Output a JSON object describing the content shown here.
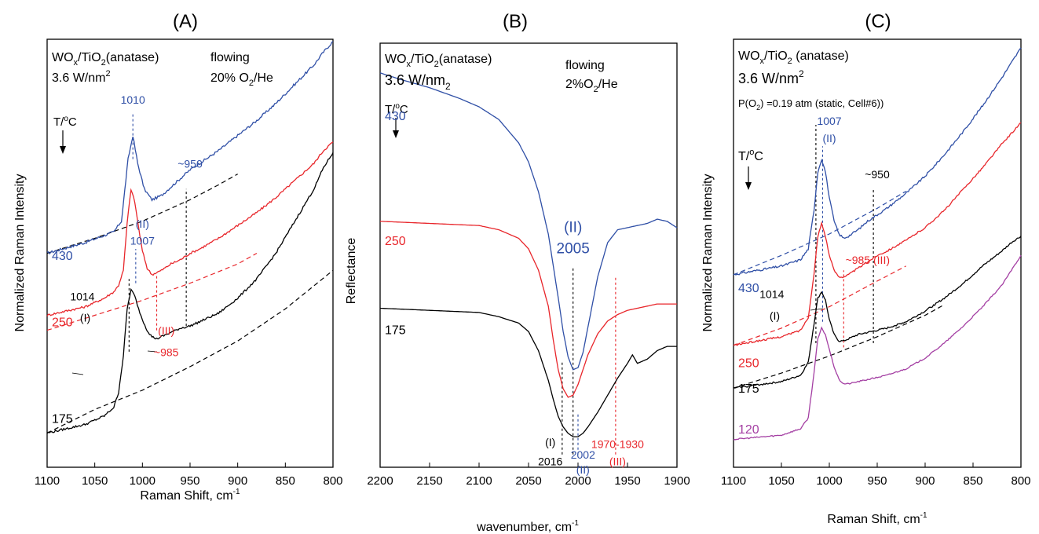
{
  "colors": {
    "blue": "#2f4fa6",
    "red": "#e8262b",
    "black": "#000000",
    "magenta": "#a43fa3"
  },
  "chart_data": [
    {
      "panel_label": "(A)",
      "type": "line",
      "xlabel": "Raman Shift, cm",
      "xlabel_sup": "-1",
      "ylabel": "Normalized Raman Intensity",
      "xlim": [
        1100,
        800
      ],
      "x_ticks": [
        "1100",
        "1050",
        "1000",
        "950",
        "900",
        "850",
        "800"
      ],
      "x_tick_values": [
        1100,
        1050,
        1000,
        950,
        900,
        850,
        800
      ],
      "ylim": [
        0,
        10
      ],
      "notes": {
        "sample": "WO",
        "sample_sub": "x",
        "sample_mid": "/TiO",
        "sample_sub2": "2",
        "sample_tail": "(anatase)",
        "density": "3.6 W/nm",
        "density_sup": "2",
        "cond1": "flowing",
        "cond2": "20% O",
        "cond2_sub": "2",
        "cond2_tail": "/He",
        "temp": "T/",
        "temp_sup": "o",
        "temp_tail": "C"
      },
      "annotations": [
        {
          "text": "1010",
          "x": 1010,
          "y": 8.5,
          "color": "blue"
        },
        {
          "text": "~950",
          "x": 950,
          "y": 7.0,
          "color": "blue"
        },
        {
          "text": "(II)",
          "x": 1000,
          "y": 5.6,
          "color": "blue"
        },
        {
          "text": "1007",
          "x": 1000,
          "y": 5.2,
          "color": "blue"
        },
        {
          "text": "1014",
          "x": 1063,
          "y": 3.9,
          "color": "black"
        },
        {
          "text": "(I)",
          "x": 1060,
          "y": 3.4,
          "color": "black"
        },
        {
          "text": "(III)",
          "x": 975,
          "y": 3.1,
          "color": "red"
        },
        {
          "text": "~985",
          "x": 975,
          "y": 2.6,
          "color": "red"
        }
      ],
      "vlines": [
        {
          "x": 1010,
          "y0": 7.2,
          "y1": 8.3,
          "color": "blue"
        },
        {
          "x": 954,
          "y0": 3.3,
          "y1": 6.5,
          "color": "black"
        },
        {
          "x": 1014,
          "y0": 2.7,
          "y1": 4.4,
          "color": "black"
        },
        {
          "x": 1007,
          "y0": 4.3,
          "y1": 5.1,
          "color": "blue"
        },
        {
          "x": 985,
          "y0": 3.2,
          "y1": 4.5,
          "color": "red"
        }
      ],
      "series": [
        {
          "name": "430",
          "color": "blue",
          "label_y": 4.95,
          "noise": 0.06,
          "x": [
            1100,
            1060,
            1030,
            1022,
            1015,
            1010,
            1005,
            998,
            990,
            980,
            970,
            960,
            950,
            940,
            920,
            900,
            880,
            860,
            840,
            820,
            810,
            800
          ],
          "y": [
            5.0,
            5.25,
            5.5,
            5.75,
            7.2,
            7.75,
            7.1,
            6.5,
            6.25,
            6.35,
            6.55,
            6.75,
            6.95,
            7.1,
            7.4,
            7.75,
            8.1,
            8.5,
            8.95,
            9.4,
            9.7,
            9.95
          ]
        },
        {
          "name": "250",
          "color": "red",
          "label_y": 3.4,
          "noise": 0.05,
          "x": [
            1100,
            1060,
            1040,
            1030,
            1025,
            1020,
            1016,
            1012,
            1008,
            1004,
            1000,
            995,
            990,
            980,
            970,
            960,
            950,
            940,
            920,
            900,
            880,
            860,
            840,
            820,
            810,
            800
          ],
          "y": [
            3.55,
            3.75,
            3.95,
            4.1,
            4.25,
            4.6,
            5.7,
            6.5,
            6.2,
            5.6,
            5.05,
            4.65,
            4.5,
            4.6,
            4.75,
            4.85,
            5.0,
            5.1,
            5.35,
            5.65,
            5.95,
            6.3,
            6.7,
            7.1,
            7.4,
            7.6
          ]
        },
        {
          "name": "175",
          "color": "black",
          "label_y": 1.15,
          "noise": 0.05,
          "x": [
            1100,
            1060,
            1040,
            1030,
            1025,
            1020,
            1016,
            1012,
            1008,
            1004,
            1000,
            995,
            990,
            985,
            980,
            970,
            960,
            950,
            940,
            920,
            900,
            880,
            860,
            840,
            820,
            810,
            800
          ],
          "y": [
            0.8,
            1.0,
            1.2,
            1.4,
            1.75,
            2.6,
            3.7,
            4.15,
            4.0,
            3.7,
            3.45,
            3.2,
            3.05,
            3.0,
            3.05,
            3.15,
            3.25,
            3.3,
            3.4,
            3.6,
            3.95,
            4.4,
            5.0,
            5.75,
            6.5,
            7.0,
            7.35
          ]
        }
      ],
      "baselines": [
        {
          "color": "black",
          "x": [
            1100,
            1050,
            1000,
            950,
            900,
            850,
            800
          ],
          "y": [
            0.8,
            1.35,
            1.8,
            2.35,
            2.95,
            3.7,
            4.6
          ]
        },
        {
          "color": "red",
          "x": [
            1100,
            1050,
            1000,
            950,
            900,
            880
          ],
          "y": [
            3.2,
            3.55,
            3.9,
            4.3,
            4.75,
            5.0
          ]
        },
        {
          "color": "black",
          "x": [
            1100,
            1050,
            1000,
            950,
            920,
            900
          ],
          "y": [
            5.0,
            5.35,
            5.75,
            6.25,
            6.6,
            6.85
          ]
        }
      ]
    },
    {
      "panel_label": "(B)",
      "type": "line",
      "xlabel": "wavenumber, cm",
      "xlabel_sup": "-1",
      "ylabel": "Reflectance",
      "xlim": [
        2200,
        1900
      ],
      "x_ticks": [
        "2200",
        "2150",
        "2100",
        "2050",
        "2000",
        "1950",
        "1900"
      ],
      "x_tick_values": [
        2200,
        2150,
        2100,
        2050,
        2000,
        1950,
        1900
      ],
      "ylim": [
        0,
        10
      ],
      "notes": {
        "sample": "WO",
        "sample_sub": "x",
        "sample_mid": "/TiO",
        "sample_sub2": "2",
        "sample_tail": "(anatase)",
        "density": "3.6 W/nm",
        "density_sub": "2",
        "cond1": "flowing",
        "cond2": "2%O",
        "cond2_sub": "2",
        "cond2_tail": "/He",
        "temp": "T/",
        "temp_sup": "o",
        "temp_tail": "C"
      },
      "annotations": [
        {
          "text": "(II)",
          "x": 2005,
          "y": 5.55,
          "color": "blue"
        },
        {
          "text": "2005",
          "x": 2005,
          "y": 5.05,
          "color": "blue"
        },
        {
          "text": "(I)",
          "x": 2028,
          "y": 0.5,
          "color": "black"
        },
        {
          "text": "2016",
          "x": 2028,
          "y": 0.05,
          "color": "black"
        },
        {
          "text": "2002",
          "x": 1995,
          "y": 0.2,
          "color": "blue"
        },
        {
          "text": "(II)",
          "x": 1995,
          "y": -0.15,
          "color": "blue"
        },
        {
          "text": "1970-1930",
          "x": 1960,
          "y": 0.45,
          "color": "red"
        },
        {
          "text": "(III)",
          "x": 1960,
          "y": 0.05,
          "color": "red"
        }
      ],
      "vlines": [
        {
          "x": 2005,
          "y0": 0.3,
          "y1": 4.7,
          "color": "black"
        },
        {
          "x": 2016,
          "y0": 0.3,
          "y1": 2.5,
          "color": "black"
        },
        {
          "x": 2000,
          "y0": 0.3,
          "y1": 1.3,
          "color": "blue"
        },
        {
          "x": 1962,
          "y0": 0.3,
          "y1": 4.5,
          "color": "red"
        }
      ],
      "series": [
        {
          "name": "430",
          "color": "blue",
          "label_y": 8.3,
          "noise": 0.0,
          "x": [
            2200,
            2180,
            2150,
            2120,
            2100,
            2080,
            2060,
            2050,
            2040,
            2030,
            2020,
            2015,
            2010,
            2005,
            2000,
            1995,
            1990,
            1980,
            1970,
            1960,
            1950,
            1940,
            1930,
            1920,
            1910,
            1900
          ],
          "y": [
            9.3,
            9.15,
            8.95,
            8.7,
            8.5,
            8.2,
            7.65,
            7.2,
            6.5,
            5.5,
            4.0,
            3.2,
            2.6,
            2.3,
            2.35,
            2.7,
            3.3,
            4.5,
            5.3,
            5.6,
            5.65,
            5.7,
            5.75,
            5.85,
            5.8,
            5.65
          ]
        },
        {
          "name": "250",
          "color": "red",
          "label_y": 5.35,
          "noise": 0.0,
          "x": [
            2200,
            2150,
            2100,
            2080,
            2060,
            2050,
            2040,
            2030,
            2025,
            2020,
            2015,
            2010,
            2005,
            2000,
            1995,
            1990,
            1980,
            1970,
            1960,
            1950,
            1940,
            1930,
            1920,
            1910,
            1900
          ],
          "y": [
            5.8,
            5.75,
            5.7,
            5.6,
            5.4,
            5.15,
            4.65,
            3.8,
            3.0,
            2.3,
            1.85,
            1.65,
            1.7,
            1.95,
            2.3,
            2.65,
            3.15,
            3.45,
            3.6,
            3.7,
            3.75,
            3.8,
            3.85,
            3.85,
            3.85
          ]
        },
        {
          "name": "175",
          "color": "black",
          "label_y": 3.25,
          "noise": 0.0,
          "x": [
            2200,
            2150,
            2100,
            2080,
            2060,
            2050,
            2040,
            2030,
            2025,
            2020,
            2015,
            2010,
            2005,
            2000,
            1995,
            1990,
            1980,
            1970,
            1960,
            1950,
            1945,
            1940,
            1930,
            1920,
            1910,
            1900
          ],
          "y": [
            3.75,
            3.7,
            3.65,
            3.55,
            3.4,
            3.2,
            2.75,
            2.05,
            1.6,
            1.2,
            0.95,
            0.8,
            0.72,
            0.72,
            0.8,
            0.95,
            1.3,
            1.7,
            2.1,
            2.45,
            2.65,
            2.45,
            2.55,
            2.75,
            2.85,
            2.85
          ]
        }
      ],
      "baselines": []
    },
    {
      "panel_label": "(C)",
      "type": "line",
      "xlabel": "Raman Shift, cm",
      "xlabel_sup": "-1",
      "ylabel": "Normalized Raman Intensity",
      "xlim": [
        1100,
        800
      ],
      "x_ticks": [
        "1100",
        "1050",
        "1000",
        "950",
        "900",
        "850",
        "800"
      ],
      "x_tick_values": [
        1100,
        1050,
        1000,
        950,
        900,
        850,
        800
      ],
      "ylim": [
        0,
        10
      ],
      "notes": {
        "sample": "WO",
        "sample_sub": "x",
        "sample_mid": "/TiO",
        "sample_sub2": "2",
        "sample_tail": " (anatase)",
        "density": "3.6 W/nm",
        "density_sup": "2",
        "pressure": "P(O",
        "pressure_sub": "2",
        "pressure_tail": ") =0.19 atm (static, Cell#6))",
        "temp": "T/",
        "temp_sup": "o",
        "temp_tail": "C"
      },
      "annotations": [
        {
          "text": "1007",
          "x": 1000,
          "y": 8.0,
          "color": "blue"
        },
        {
          "text": "(II)",
          "x": 1000,
          "y": 7.6,
          "color": "blue"
        },
        {
          "text": "~950",
          "x": 950,
          "y": 6.75,
          "color": "black"
        },
        {
          "text": "~985 (III)",
          "x": 960,
          "y": 4.75,
          "color": "red"
        },
        {
          "text": "1014",
          "x": 1060,
          "y": 3.95,
          "color": "black"
        },
        {
          "text": "(I)",
          "x": 1057,
          "y": 3.45,
          "color": "black"
        }
      ],
      "vlines": [
        {
          "x": 1014,
          "y0": 2.9,
          "y1": 8.0,
          "color": "black"
        },
        {
          "x": 1007,
          "y0": 3.4,
          "y1": 7.5,
          "color": "blue"
        },
        {
          "x": 954,
          "y0": 2.9,
          "y1": 6.5,
          "color": "black"
        },
        {
          "x": 985,
          "y0": 2.8,
          "y1": 4.6,
          "color": "red"
        }
      ],
      "series": [
        {
          "name": "430",
          "color": "blue",
          "label_y": 4.2,
          "noise": 0.05,
          "x": [
            1100,
            1050,
            1030,
            1022,
            1016,
            1012,
            1008,
            1004,
            1000,
            995,
            990,
            985,
            980,
            970,
            960,
            950,
            940,
            920,
            900,
            880,
            860,
            840,
            820,
            810,
            800
          ],
          "y": [
            4.5,
            4.7,
            4.85,
            5.1,
            6.0,
            6.9,
            7.2,
            6.9,
            6.3,
            5.75,
            5.45,
            5.35,
            5.4,
            5.55,
            5.75,
            5.9,
            6.05,
            6.4,
            6.8,
            7.3,
            7.85,
            8.45,
            9.1,
            9.45,
            9.8
          ]
        },
        {
          "name": "250",
          "color": "red",
          "label_y": 2.45,
          "noise": 0.04,
          "x": [
            1100,
            1050,
            1030,
            1022,
            1016,
            1012,
            1008,
            1004,
            1000,
            995,
            990,
            985,
            980,
            970,
            960,
            950,
            940,
            920,
            900,
            880,
            860,
            840,
            820,
            810,
            800
          ],
          "y": [
            2.85,
            3.05,
            3.2,
            3.5,
            4.5,
            5.4,
            5.7,
            5.4,
            4.95,
            4.6,
            4.45,
            4.45,
            4.5,
            4.65,
            4.8,
            4.95,
            5.05,
            5.3,
            5.6,
            6.0,
            6.5,
            7.0,
            7.55,
            7.8,
            8.05
          ]
        },
        {
          "name": "175",
          "color": "black",
          "label_y": 1.85,
          "noise": 0.04,
          "x": [
            1100,
            1050,
            1030,
            1022,
            1016,
            1012,
            1008,
            1004,
            1000,
            995,
            990,
            985,
            980,
            970,
            960,
            950,
            940,
            920,
            900,
            880,
            860,
            840,
            820,
            810,
            800
          ],
          "y": [
            1.85,
            2.0,
            2.15,
            2.45,
            3.35,
            3.95,
            4.1,
            3.9,
            3.45,
            3.1,
            2.95,
            2.95,
            3.0,
            3.1,
            3.15,
            3.2,
            3.25,
            3.4,
            3.65,
            3.95,
            4.3,
            4.7,
            5.05,
            5.25,
            5.4
          ]
        },
        {
          "name": "120",
          "color": "magenta",
          "label_y": 0.9,
          "noise": 0.03,
          "x": [
            1100,
            1050,
            1030,
            1022,
            1016,
            1012,
            1008,
            1004,
            1000,
            995,
            990,
            985,
            980,
            970,
            960,
            950,
            940,
            920,
            900,
            880,
            860,
            840,
            820,
            810,
            800
          ],
          "y": [
            0.65,
            0.75,
            0.9,
            1.15,
            2.2,
            3.0,
            3.25,
            3.1,
            2.75,
            2.35,
            2.05,
            1.95,
            1.95,
            2.0,
            2.05,
            2.1,
            2.15,
            2.3,
            2.55,
            2.9,
            3.3,
            3.75,
            4.25,
            4.6,
            4.95
          ]
        }
      ],
      "baselines": [
        {
          "color": "black",
          "x": [
            1100,
            1050,
            1000,
            950,
            900,
            880
          ],
          "y": [
            1.85,
            2.2,
            2.6,
            3.05,
            3.55,
            3.8
          ]
        },
        {
          "color": "red",
          "x": [
            1100,
            1050,
            1000,
            950,
            920
          ],
          "y": [
            2.85,
            3.25,
            3.75,
            4.35,
            4.7
          ]
        },
        {
          "color": "blue",
          "x": [
            1100,
            1050,
            1000,
            950,
            920
          ],
          "y": [
            4.5,
            4.95,
            5.45,
            6.05,
            6.45
          ]
        }
      ]
    }
  ]
}
